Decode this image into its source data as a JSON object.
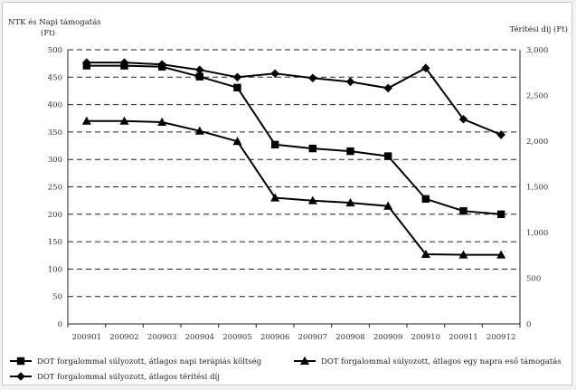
{
  "chart_data": {
    "type": "line",
    "title": "",
    "y_left_label_line1": "NTK és Napi támogatás",
    "y_left_label_line2": "(Ft)",
    "y_right_label": "Térítési díj (Ft)",
    "left_ylim": [
      0,
      500
    ],
    "left_yticks": [
      0,
      50,
      100,
      150,
      200,
      250,
      300,
      350,
      400,
      450,
      500
    ],
    "right_ylim": [
      0,
      3000
    ],
    "right_yticks": [
      "0",
      "500",
      "1,000",
      "1,500",
      "2,000",
      "2,500",
      "3,000"
    ],
    "right_ytick_values": [
      0,
      500,
      1000,
      1500,
      2000,
      2500,
      3000
    ],
    "grid": "dashed horizontal",
    "legend_position": "bottom",
    "categories": [
      "200901",
      "200902",
      "200903",
      "200904",
      "200905",
      "200906",
      "200907",
      "200908",
      "200909",
      "200910",
      "200911",
      "200912"
    ],
    "series": [
      {
        "name": "DOT forgalommal súlyozott, átlagos napi terápiás költség",
        "marker": "square",
        "axis": "left",
        "values": [
          471,
          471,
          469,
          451,
          431,
          327,
          320,
          315,
          306,
          228,
          206,
          200
        ]
      },
      {
        "name": "DOT forgalommal súlyozott, átlagos egy napra eső támogatás",
        "marker": "triangle",
        "axis": "left",
        "values": [
          370,
          370,
          368,
          352,
          333,
          230,
          225,
          221,
          215,
          127,
          126,
          126
        ]
      },
      {
        "name": "DOT forgalommal súlyozott, átlagos térítési díj",
        "marker": "diamond",
        "axis": "right",
        "values": [
          2860,
          2860,
          2840,
          2780,
          2700,
          2740,
          2690,
          2650,
          2580,
          2800,
          2240,
          2070
        ]
      }
    ]
  }
}
